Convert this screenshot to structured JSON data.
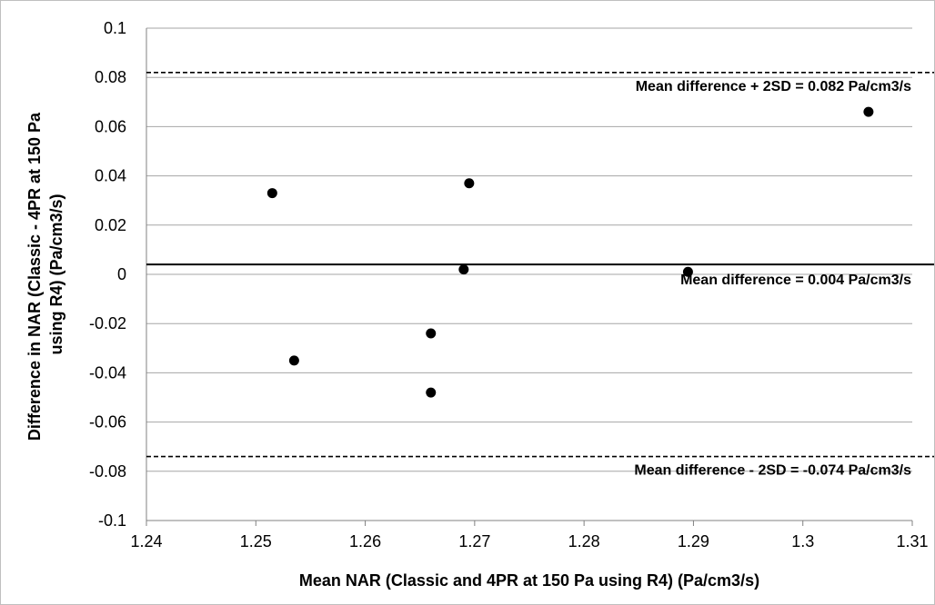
{
  "chart_data": {
    "type": "scatter",
    "title": "",
    "xlabel": "Mean NAR (Classic and 4PR at 150 Pa using R4) (Pa/cm3/s)",
    "ylabel_lines": [
      "Difference in NAR (Classic - 4PR at 150 Pa",
      "using R4) (Pa/cm3/s)"
    ],
    "xlim": [
      1.24,
      1.31
    ],
    "ylim": [
      -0.1,
      0.1
    ],
    "x_ticks": [
      "1.24",
      "1.25",
      "1.26",
      "1.27",
      "1.28",
      "1.29",
      "1.3",
      "1.31"
    ],
    "y_ticks": [
      "-0.1",
      "-0.08",
      "-0.06",
      "-0.04",
      "-0.02",
      "0",
      "0.02",
      "0.04",
      "0.06",
      "0.08",
      "0.1"
    ],
    "grid": "horizontal",
    "points": [
      {
        "x": 1.2515,
        "y": 0.033
      },
      {
        "x": 1.2535,
        "y": -0.035
      },
      {
        "x": 1.266,
        "y": -0.024
      },
      {
        "x": 1.266,
        "y": -0.048
      },
      {
        "x": 1.269,
        "y": 0.002
      },
      {
        "x": 1.2695,
        "y": 0.037
      },
      {
        "x": 1.2895,
        "y": 0.001
      },
      {
        "x": 1.306,
        "y": 0.066
      }
    ],
    "reference_lines": [
      {
        "y": 0.082,
        "style": "dashed",
        "label": "Mean difference + 2SD = 0.082 Pa/cm3/s"
      },
      {
        "y": 0.004,
        "style": "solid",
        "label": "Mean difference = 0.004 Pa/cm3/s"
      },
      {
        "y": -0.074,
        "style": "dashed",
        "label": "Mean difference - 2SD = -0.074 Pa/cm3/s"
      }
    ]
  }
}
